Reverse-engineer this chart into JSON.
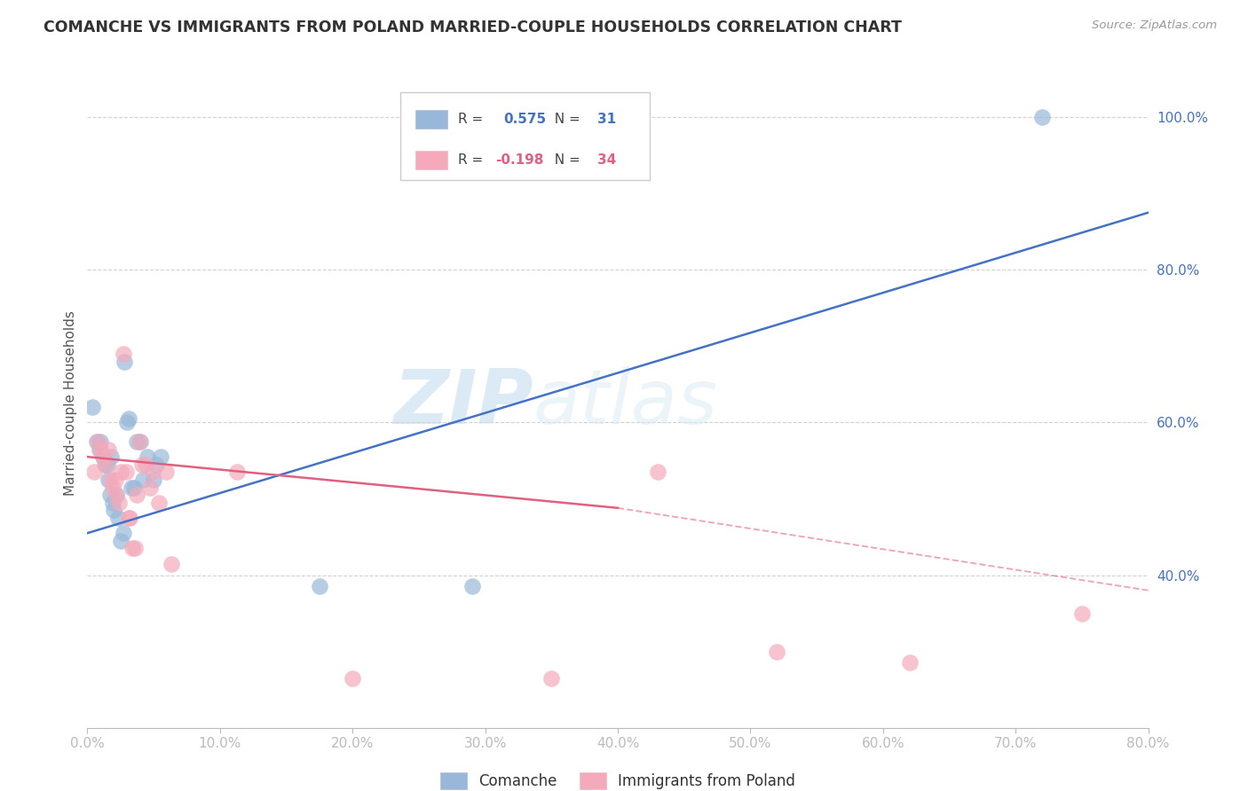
{
  "title": "COMANCHE VS IMMIGRANTS FROM POLAND MARRIED-COUPLE HOUSEHOLDS CORRELATION CHART",
  "source": "Source: ZipAtlas.com",
  "ylabel": "Married-couple Households",
  "xlim": [
    0.0,
    0.8
  ],
  "ylim": [
    0.2,
    1.05
  ],
  "yticks": [
    0.4,
    0.6,
    0.8,
    1.0
  ],
  "ytick_labels": [
    "40.0%",
    "60.0%",
    "80.0%",
    "100.0%"
  ],
  "xticks": [
    0.0,
    0.1,
    0.2,
    0.3,
    0.4,
    0.5,
    0.6,
    0.7,
    0.8
  ],
  "xtick_labels": [
    "0.0%",
    "10.0%",
    "20.0%",
    "30.0%",
    "40.0%",
    "50.0%",
    "60.0%",
    "70.0%",
    "80.0%"
  ],
  "watermark_zip": "ZIP",
  "watermark_atlas": "atlas",
  "legend_blue_r": "0.575",
  "legend_blue_n": "31",
  "legend_pink_r": "-0.198",
  "legend_pink_n": "34",
  "blue_color": "#99B8D9",
  "pink_color": "#F4AABB",
  "blue_line_color": "#4472C4",
  "pink_line_color": "#E06080",
  "tick_color": "#4472C4",
  "blue_scatter": [
    [
      0.004,
      0.62
    ],
    [
      0.007,
      0.575
    ],
    [
      0.009,
      0.565
    ],
    [
      0.01,
      0.575
    ],
    [
      0.012,
      0.555
    ],
    [
      0.013,
      0.545
    ],
    [
      0.015,
      0.545
    ],
    [
      0.016,
      0.525
    ],
    [
      0.017,
      0.505
    ],
    [
      0.018,
      0.555
    ],
    [
      0.019,
      0.495
    ],
    [
      0.02,
      0.485
    ],
    [
      0.022,
      0.505
    ],
    [
      0.023,
      0.475
    ],
    [
      0.025,
      0.445
    ],
    [
      0.027,
      0.455
    ],
    [
      0.028,
      0.68
    ],
    [
      0.03,
      0.6
    ],
    [
      0.031,
      0.605
    ],
    [
      0.033,
      0.515
    ],
    [
      0.035,
      0.515
    ],
    [
      0.037,
      0.575
    ],
    [
      0.04,
      0.575
    ],
    [
      0.042,
      0.525
    ],
    [
      0.045,
      0.555
    ],
    [
      0.05,
      0.525
    ],
    [
      0.052,
      0.545
    ],
    [
      0.055,
      0.555
    ],
    [
      0.175,
      0.385
    ],
    [
      0.29,
      0.385
    ],
    [
      0.72,
      1.0
    ]
  ],
  "pink_scatter": [
    [
      0.005,
      0.535
    ],
    [
      0.008,
      0.575
    ],
    [
      0.01,
      0.565
    ],
    [
      0.012,
      0.555
    ],
    [
      0.014,
      0.545
    ],
    [
      0.016,
      0.565
    ],
    [
      0.018,
      0.525
    ],
    [
      0.019,
      0.515
    ],
    [
      0.021,
      0.525
    ],
    [
      0.022,
      0.505
    ],
    [
      0.024,
      0.495
    ],
    [
      0.025,
      0.535
    ],
    [
      0.027,
      0.69
    ],
    [
      0.029,
      0.535
    ],
    [
      0.031,
      0.475
    ],
    [
      0.032,
      0.475
    ],
    [
      0.034,
      0.435
    ],
    [
      0.036,
      0.435
    ],
    [
      0.037,
      0.505
    ],
    [
      0.039,
      0.575
    ],
    [
      0.041,
      0.545
    ],
    [
      0.044,
      0.545
    ],
    [
      0.047,
      0.515
    ],
    [
      0.049,
      0.535
    ],
    [
      0.054,
      0.495
    ],
    [
      0.059,
      0.535
    ],
    [
      0.063,
      0.415
    ],
    [
      0.113,
      0.535
    ],
    [
      0.2,
      0.265
    ],
    [
      0.43,
      0.535
    ],
    [
      0.52,
      0.3
    ],
    [
      0.62,
      0.285
    ],
    [
      0.75,
      0.35
    ],
    [
      0.35,
      0.265
    ]
  ],
  "blue_line": {
    "x0": 0.0,
    "y0": 0.455,
    "x1": 0.8,
    "y1": 0.875
  },
  "pink_line_solid": {
    "x0": 0.0,
    "y0": 0.555,
    "x1": 0.4,
    "y1": 0.488
  },
  "pink_line_dashed": {
    "x0": 0.4,
    "y0": 0.488,
    "x1": 0.8,
    "y1": 0.38
  },
  "background_color": "#FFFFFF",
  "grid_color": "#CCCCCC"
}
